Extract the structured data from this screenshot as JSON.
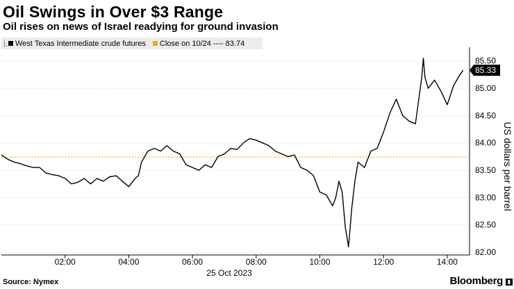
{
  "chart_data": {
    "type": "line",
    "title": "Oil Swings in Over $3 Range",
    "subtitle": "Oil rises on news of Israel readying for ground invasion",
    "ylabel": "US dollars per barrel",
    "xlabel": "25 Oct 2023",
    "ylim": [
      81.95,
      85.7
    ],
    "xlim": [
      0.0,
      14.7
    ],
    "y_ticks": [
      {
        "value": 82.0,
        "label": "82.00"
      },
      {
        "value": 82.5,
        "label": "82.50"
      },
      {
        "value": 83.0,
        "label": "83.00"
      },
      {
        "value": 83.5,
        "label": "83.50"
      },
      {
        "value": 84.0,
        "label": "84.00"
      },
      {
        "value": 84.5,
        "label": "84.50"
      },
      {
        "value": 85.0,
        "label": "85.00"
      },
      {
        "value": 85.5,
        "label": "85.50"
      }
    ],
    "x_ticks": [
      {
        "value": 2,
        "label": "02:00"
      },
      {
        "value": 4,
        "label": "04:00"
      },
      {
        "value": 6,
        "label": "06:00"
      },
      {
        "value": 8,
        "label": "08:00"
      },
      {
        "value": 10,
        "label": "10:00"
      },
      {
        "value": 12,
        "label": "12:00"
      },
      {
        "value": 14,
        "label": "14:00"
      }
    ],
    "grid": "horizontal",
    "legend_position": "top-left",
    "series": [
      {
        "name": "West Texas Intermediate crude futures",
        "color": "#000000",
        "x": [
          0.0,
          0.2,
          0.4,
          0.6,
          0.8,
          1.0,
          1.2,
          1.4,
          1.6,
          1.8,
          2.0,
          2.2,
          2.4,
          2.6,
          2.8,
          3.0,
          3.2,
          3.4,
          3.6,
          3.8,
          4.0,
          4.2,
          4.3,
          4.4,
          4.6,
          4.8,
          5.0,
          5.2,
          5.4,
          5.6,
          5.8,
          6.0,
          6.2,
          6.4,
          6.6,
          6.8,
          7.0,
          7.2,
          7.4,
          7.6,
          7.8,
          8.0,
          8.2,
          8.4,
          8.6,
          8.8,
          9.0,
          9.2,
          9.4,
          9.6,
          9.8,
          10.0,
          10.2,
          10.4,
          10.5,
          10.6,
          10.7,
          10.8,
          10.9,
          11.0,
          11.1,
          11.2,
          11.4,
          11.6,
          11.8,
          12.0,
          12.2,
          12.4,
          12.6,
          12.8,
          13.0,
          13.2,
          13.25,
          13.3,
          13.4,
          13.6,
          13.8,
          14.0,
          14.2,
          14.4,
          14.5
        ],
        "y": [
          83.78,
          83.7,
          83.65,
          83.62,
          83.58,
          83.55,
          83.55,
          83.45,
          83.42,
          83.4,
          83.35,
          83.25,
          83.28,
          83.35,
          83.25,
          83.35,
          83.3,
          83.38,
          83.4,
          83.3,
          83.2,
          83.35,
          83.4,
          83.65,
          83.85,
          83.9,
          83.85,
          83.95,
          83.85,
          83.8,
          83.6,
          83.55,
          83.5,
          83.6,
          83.55,
          83.75,
          83.8,
          83.9,
          83.88,
          84.0,
          84.08,
          84.05,
          84.0,
          83.95,
          83.85,
          83.8,
          83.75,
          83.78,
          83.55,
          83.5,
          83.4,
          83.1,
          83.05,
          82.85,
          83.0,
          83.3,
          83.1,
          82.45,
          82.1,
          82.8,
          83.3,
          83.65,
          83.55,
          83.85,
          83.9,
          84.2,
          84.55,
          84.8,
          84.5,
          84.4,
          84.35,
          85.2,
          85.55,
          85.2,
          85.0,
          85.15,
          84.95,
          84.7,
          85.05,
          85.25,
          85.33
        ]
      },
      {
        "name": "Close on 10/24 ---- 83.74",
        "color": "#f5a623",
        "value": 83.74
      }
    ],
    "last_value_label": "85.33"
  },
  "footer": {
    "source": "Source: Nymex",
    "brand": "Bloomberg"
  }
}
